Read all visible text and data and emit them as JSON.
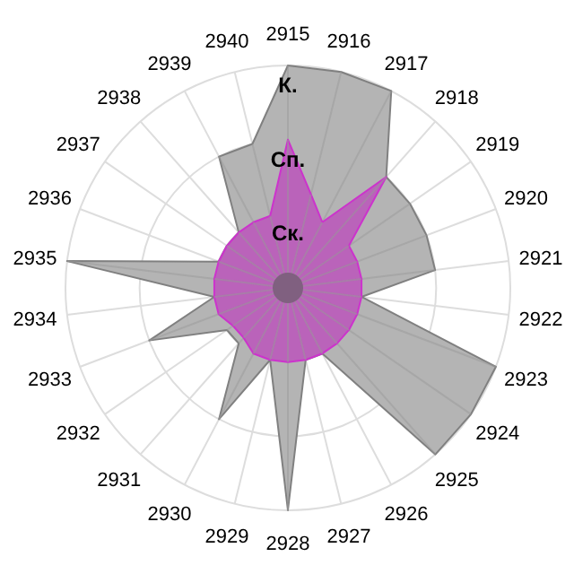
{
  "chart_data": {
    "type": "radar",
    "categories": [
      "2915",
      "2916",
      "2917",
      "2918",
      "2919",
      "2920",
      "2921",
      "2922",
      "2923",
      "2924",
      "2925",
      "2926",
      "2927",
      "2928",
      "2929",
      "2930",
      "2931",
      "2932",
      "2933",
      "2934",
      "2935",
      "2936",
      "2937",
      "2938",
      "2939",
      "2940"
    ],
    "series": [
      {
        "color": "#b4b4b4",
        "values": [
          3,
          3,
          3,
          2,
          2,
          2,
          2,
          1,
          3,
          3,
          3,
          1,
          1,
          3,
          1,
          2,
          1,
          1,
          2,
          1,
          3,
          1,
          1,
          1,
          2,
          2
        ]
      },
      {
        "color": "#bb55bb",
        "values": [
          2,
          1.3,
          1,
          2,
          1,
          1,
          1,
          1,
          1,
          1,
          1,
          1,
          1,
          1,
          1,
          1,
          0.9,
          0.9,
          1,
          1,
          1,
          1,
          1,
          1,
          1,
          1
        ]
      }
    ],
    "ylim": [
      0,
      3
    ],
    "yticks": [
      {
        "value": 1,
        "label": "Ск."
      },
      {
        "value": 2,
        "label": "Сп."
      },
      {
        "value": 3,
        "label": "К."
      }
    ],
    "grid": true
  }
}
